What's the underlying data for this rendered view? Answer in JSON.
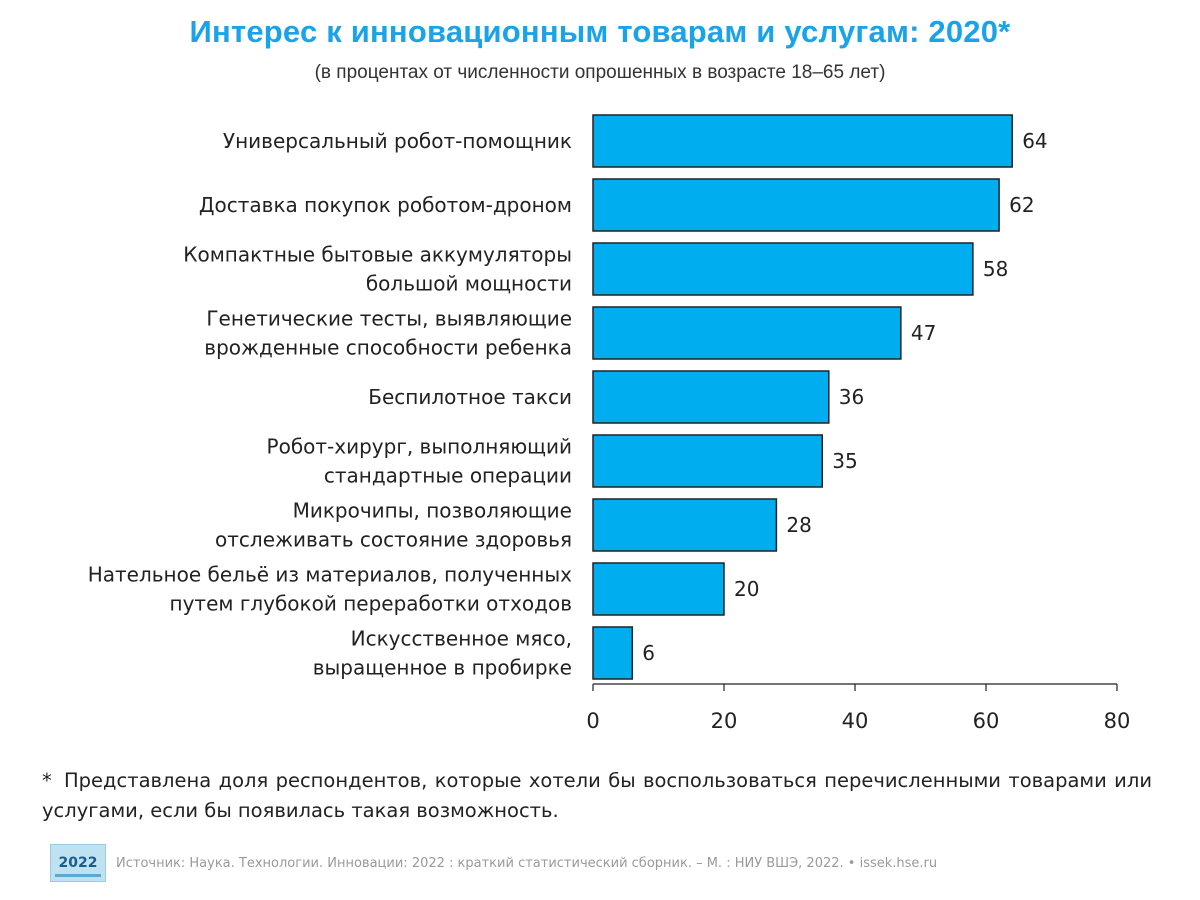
{
  "header": {
    "title": "Интерес к инновационным товарам и услугам: 2020*",
    "subtitle": "(в процентах от численности опрошенных в возрасте 18–65 лет)"
  },
  "chart_data": {
    "type": "bar",
    "orientation": "horizontal",
    "title": "Интерес к инновационным товарам и услугам: 2020*",
    "subtitle": "(в процентах от численности опрошенных в возрасте 18–65 лет)",
    "categories": [
      [
        "Универсальный робот-помощник"
      ],
      [
        "Доставка покупок роботом-дроном"
      ],
      [
        "Компактные бытовые аккумуляторы",
        "большой мощности"
      ],
      [
        "Генетические тесты, выявляющие",
        "врожденные способности ребенка"
      ],
      [
        "Беспилотное такси"
      ],
      [
        "Робот-хирург, выполняющий",
        "стандартные операции"
      ],
      [
        "Микрочипы, позволяющие",
        "отслеживать состояние здоровья"
      ],
      [
        "Нательное бельё из материалов, полученных",
        "путем глубокой переработки отходов"
      ],
      [
        "Искусственное мясо,",
        "выращенное в пробирке"
      ]
    ],
    "values": [
      64,
      62,
      58,
      47,
      36,
      35,
      28,
      20,
      6
    ],
    "xlim": [
      0,
      80
    ],
    "xticks": [
      0,
      20,
      40,
      60,
      80
    ],
    "xlabel": "",
    "ylabel": "",
    "grid": false,
    "bar_color": "#00aeef",
    "bar_edge_color": "#222222"
  },
  "footnote": {
    "marker": "*",
    "text": "Представлена доля респондентов, которые хотели бы воспользоваться перечисленными товарами или услугами, если бы появилась такая возможность."
  },
  "source": {
    "logo_text": "2022",
    "text": "Источник: Наука. Технологии. Инновации: 2022 : краткий статистический сборник. – М. : НИУ ВШЭ, 2022. • issek.hse.ru"
  }
}
